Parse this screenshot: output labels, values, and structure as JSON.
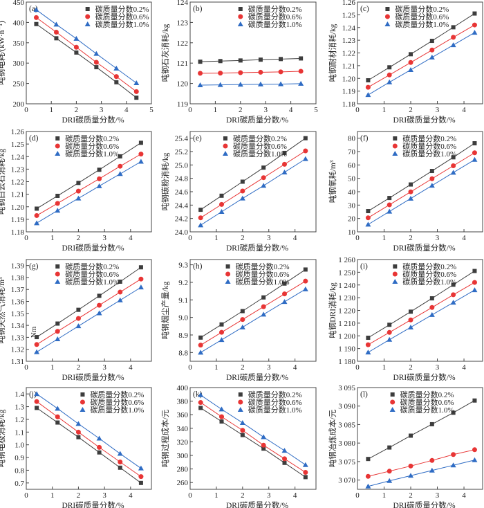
{
  "colors": {
    "c02": "#3d3d3d",
    "c06": "#e83535",
    "c10": "#2f6cc4"
  },
  "series_names": [
    "碳质量分数0.2%",
    "碳质量分数0.6%",
    "碳质量分数1.0%"
  ],
  "markers": [
    "square",
    "circle",
    "triangle"
  ],
  "chart_data": [
    {
      "type": "line",
      "panel": "(a)",
      "xlabel": "DRI碳质量分数/%",
      "ylabel": "吨钢电耗/(kW·h⁻¹)",
      "xlim": [
        0,
        5
      ],
      "xticks": [
        0,
        1,
        2,
        3,
        4,
        5
      ],
      "ylim": [
        200,
        450
      ],
      "yticks": [
        "200",
        "250",
        "300",
        "350",
        "400",
        "450"
      ],
      "legend": "top-right",
      "x": [
        0.4,
        1.2,
        2.0,
        2.8,
        3.6,
        4.4
      ],
      "series": [
        {
          "name": "碳质量分数0.2%",
          "values": [
            396,
            361,
            326,
            290,
            253,
            215
          ]
        },
        {
          "name": "碳质量分数0.6%",
          "values": [
            412,
            376,
            339,
            302,
            267,
            230
          ]
        },
        {
          "name": "碳质量分数1.0%",
          "values": [
            431,
            395,
            360,
            323,
            287,
            251
          ]
        }
      ]
    },
    {
      "type": "line",
      "panel": "(b)",
      "xlabel": "DRI碳质量分数/%",
      "ylabel": "吨钢石灰消耗/kg",
      "xlim": [
        0,
        5
      ],
      "xticks": [
        0,
        1,
        2,
        3,
        4,
        5
      ],
      "ylim": [
        119,
        124
      ],
      "yticks": [
        "119",
        "120",
        "121",
        "122",
        "123",
        "124"
      ],
      "legend": "top-right",
      "x": [
        0.4,
        1.2,
        2.0,
        2.8,
        3.6,
        4.4
      ],
      "series": [
        {
          "name": "碳质量分数0.2%",
          "values": [
            121.07,
            121.1,
            121.13,
            121.17,
            121.2,
            121.23
          ]
        },
        {
          "name": "碳质量分数0.6%",
          "values": [
            120.5,
            120.51,
            120.53,
            120.55,
            120.57,
            120.6
          ]
        },
        {
          "name": "碳质量分数1.0%",
          "values": [
            119.92,
            119.93,
            119.95,
            119.96,
            119.97,
            119.99
          ]
        }
      ]
    },
    {
      "type": "line",
      "panel": "(c)",
      "xlabel": "DRI碳质量分数/%",
      "ylabel": "吨钢耐材消耗/kg",
      "xlim": [
        0,
        4.7
      ],
      "xticks": [
        0,
        1,
        2,
        3,
        4
      ],
      "ylim": [
        1.18,
        1.26
      ],
      "yticks": [
        "1.18",
        "1.19",
        "1.20",
        "1.21",
        "1.22",
        "1.23",
        "1.24",
        "1.25",
        "1.26"
      ],
      "legend": "top-right",
      "x": [
        0.4,
        1.2,
        2.0,
        2.8,
        3.6,
        4.4
      ],
      "series": [
        {
          "name": "碳质量分数0.2%",
          "values": [
            1.1985,
            1.2087,
            1.219,
            1.2295,
            1.2402,
            1.251
          ]
        },
        {
          "name": "碳质量分数0.6%",
          "values": [
            1.193,
            1.2027,
            1.2125,
            1.2223,
            1.2323,
            1.242
          ]
        },
        {
          "name": "碳质量分数1.0%",
          "values": [
            1.187,
            1.197,
            1.2067,
            1.2165,
            1.2262,
            1.236
          ]
        }
      ]
    },
    {
      "type": "line",
      "panel": "(d)",
      "xlabel": "DRI碳质量分数/%",
      "ylabel": "吨钢白云石消耗/kg",
      "xlim": [
        0,
        4.8
      ],
      "xticks": [
        0,
        1,
        2,
        3,
        4
      ],
      "ylim": [
        1.18,
        1.26
      ],
      "yticks": [
        "1.18",
        "1.19",
        "1.20",
        "1.21",
        "1.22",
        "1.23",
        "1.24",
        "1.25",
        "1.26"
      ],
      "legend": "top-right",
      "x": [
        0.4,
        1.2,
        2.0,
        2.8,
        3.6,
        4.4
      ],
      "series": [
        {
          "name": "碳质量分数0.2%",
          "values": [
            1.1985,
            1.2087,
            1.219,
            1.2295,
            1.2402,
            1.251
          ]
        },
        {
          "name": "碳质量分数0.6%",
          "values": [
            1.193,
            1.2027,
            1.2125,
            1.2223,
            1.2323,
            1.242
          ]
        },
        {
          "name": "碳质量分数1.0%",
          "values": [
            1.187,
            1.197,
            1.2067,
            1.2165,
            1.2262,
            1.236
          ]
        }
      ]
    },
    {
      "type": "line",
      "panel": "(e)",
      "xlabel": "DRI碳质量分数/%",
      "ylabel": "吨钢碳粉消耗/kg",
      "xlim": [
        0,
        4.8
      ],
      "xticks": [
        0,
        1,
        2,
        3,
        4
      ],
      "ylim": [
        24.0,
        25.5
      ],
      "yticks": [
        "24.0",
        "24.2",
        "24.4",
        "24.6",
        "24.8",
        "25.0",
        "25.2",
        "25.4"
      ],
      "legend": "top-right",
      "x": [
        0.4,
        1.2,
        2.0,
        2.8,
        3.6,
        4.4
      ],
      "series": [
        {
          "name": "碳质量分数0.2%",
          "values": [
            24.33,
            24.54,
            24.75,
            24.96,
            25.18,
            25.4
          ]
        },
        {
          "name": "碳质量分数0.6%",
          "values": [
            24.21,
            24.41,
            24.61,
            24.81,
            25.01,
            25.21
          ]
        },
        {
          "name": "碳质量分数1.0%",
          "values": [
            24.1,
            24.3,
            24.5,
            24.69,
            24.89,
            25.09
          ]
        }
      ]
    },
    {
      "type": "line",
      "panel": "(f)",
      "xlabel": "DRI碳质量分数/%",
      "ylabel": "吨钢氧耗/m³",
      "xlim": [
        0,
        4.7
      ],
      "xticks": [
        0,
        1,
        2,
        3,
        4
      ],
      "ylim": [
        10,
        85
      ],
      "yticks": [
        "10",
        "20",
        "30",
        "40",
        "50",
        "60",
        "70",
        "80"
      ],
      "legend": "top-right",
      "x": [
        0.4,
        1.2,
        2.0,
        2.8,
        3.6,
        4.4
      ],
      "series": [
        {
          "name": "碳质量分数0.2%",
          "values": [
            25.5,
            35.3,
            45.4,
            55.5,
            65.7,
            76.2
          ]
        },
        {
          "name": "碳质量分数0.6%",
          "values": [
            20.5,
            30.2,
            39.9,
            49.7,
            59.4,
            69.1
          ]
        },
        {
          "name": "碳质量分数1.0%",
          "values": [
            15.5,
            25.2,
            34.9,
            44.6,
            54.3,
            63.9
          ]
        }
      ]
    },
    {
      "type": "line",
      "panel": "(g)",
      "xlabel": "DRI碳质量分数/%",
      "ylabel": "吨钢天然气消耗/m³",
      "annotation": "Nm",
      "xlim": [
        0,
        4.8
      ],
      "xticks": [
        0,
        1,
        2,
        3,
        4
      ],
      "ylim": [
        1.31,
        1.395
      ],
      "yticks": [
        "1.31",
        "1.32",
        "1.33",
        "1.34",
        "1.35",
        "1.36",
        "1.37",
        "1.38",
        "1.39"
      ],
      "legend": "top-right",
      "x": [
        0.4,
        1.2,
        2.0,
        2.8,
        3.6,
        4.4
      ],
      "series": [
        {
          "name": "碳质量分数0.2%",
          "values": [
            1.3302,
            1.3415,
            1.353,
            1.3647,
            1.3765,
            1.3885
          ]
        },
        {
          "name": "碳质量分数0.6%",
          "values": [
            1.324,
            1.335,
            1.3458,
            1.3568,
            1.3678,
            1.3787
          ]
        },
        {
          "name": "碳质量分数1.0%",
          "values": [
            1.3177,
            1.3285,
            1.3394,
            1.3502,
            1.361,
            1.3718
          ]
        }
      ]
    },
    {
      "type": "line",
      "panel": "(h)",
      "xlabel": "DRI碳质量分数/%",
      "ylabel": "吨钢烟尘产量/kg",
      "xlim": [
        0,
        4.8
      ],
      "xticks": [
        0,
        1,
        2,
        3,
        4
      ],
      "ylim": [
        8.75,
        9.33
      ],
      "yticks": [
        "8.8",
        "8.9",
        "9.0",
        "9.1",
        "9.2",
        "9.3"
      ],
      "legend": "top-right",
      "x": [
        0.4,
        1.2,
        2.0,
        2.8,
        3.6,
        4.4
      ],
      "series": [
        {
          "name": "碳质量分数0.2%",
          "values": [
            8.885,
            8.96,
            9.036,
            9.114,
            9.193,
            9.273
          ]
        },
        {
          "name": "碳质量分数0.6%",
          "values": [
            8.842,
            8.915,
            8.988,
            9.061,
            9.134,
            9.207
          ]
        },
        {
          "name": "碳质量分数1.0%",
          "values": [
            8.8,
            8.872,
            8.944,
            9.017,
            9.089,
            9.161
          ]
        }
      ]
    },
    {
      "type": "line",
      "panel": "(i)",
      "xlabel": "DRI碳质量分数/%",
      "ylabel": "吨钢DRI消耗/kg",
      "xlim": [
        0,
        4.7
      ],
      "xticks": [
        0,
        1,
        2,
        3,
        4
      ],
      "ylim": [
        1180,
        1260
      ],
      "yticks": [
        "1 180",
        "1 190",
        "1 200",
        "1 210",
        "1 220",
        "1 230",
        "1 240",
        "1 250",
        "1 260"
      ],
      "legend": "top-right",
      "x": [
        0.4,
        1.2,
        2.0,
        2.8,
        3.6,
        4.4
      ],
      "series": [
        {
          "name": "碳质量分数0.2%",
          "values": [
            1198.5,
            1208.7,
            1219,
            1229.5,
            1240.2,
            1251
          ]
        },
        {
          "name": "碳质量分数0.6%",
          "values": [
            1193,
            1202.7,
            1212.5,
            1222.3,
            1232.3,
            1242
          ]
        },
        {
          "name": "碳质量分数1.0%",
          "values": [
            1187,
            1197,
            1206.7,
            1216.5,
            1226.2,
            1236
          ]
        }
      ]
    },
    {
      "type": "line",
      "panel": "(j)",
      "xlabel": "DRI碳质量分数/%",
      "ylabel": "吨钢电极消耗/kg",
      "xlim": [
        0,
        4.8
      ],
      "xticks": [
        0,
        1,
        2,
        3,
        4
      ],
      "ylim": [
        0.65,
        1.45
      ],
      "yticks": [
        "0.7",
        "0.8",
        "0.9",
        "1.0",
        "1.1",
        "1.2",
        "1.3",
        "1.4"
      ],
      "legend": "top-right",
      "x": [
        0.4,
        1.2,
        2.0,
        2.8,
        3.6,
        4.4
      ],
      "series": [
        {
          "name": "碳质量分数0.2%",
          "values": [
            1.29,
            1.175,
            1.06,
            0.94,
            0.82,
            0.7
          ]
        },
        {
          "name": "碳质量分数0.6%",
          "values": [
            1.34,
            1.22,
            1.1,
            0.98,
            0.865,
            0.75
          ]
        },
        {
          "name": "碳质量分数1.0%",
          "values": [
            1.4,
            1.285,
            1.165,
            1.05,
            0.93,
            0.815
          ]
        }
      ]
    },
    {
      "type": "line",
      "panel": "(k)",
      "xlabel": "DRI碳质量分数/%",
      "ylabel": "吨钢过程成本/元",
      "xlim": [
        0,
        4.8
      ],
      "xticks": [
        0,
        1,
        2,
        3,
        4
      ],
      "ylim": [
        250,
        400
      ],
      "yticks": [
        "260",
        "280",
        "300",
        "320",
        "340",
        "360",
        "380",
        "400"
      ],
      "legend": "top-right",
      "x": [
        0.4,
        1.2,
        2.0,
        2.8,
        3.6,
        4.4
      ],
      "series": [
        {
          "name": "碳质量分数0.2%",
          "values": [
            370,
            350,
            330,
            310,
            289,
            268
          ]
        },
        {
          "name": "碳质量分数0.6%",
          "values": [
            378,
            357,
            337,
            315,
            295,
            275
          ]
        },
        {
          "name": "碳质量分数1.0%",
          "values": [
            389,
            368,
            348,
            327,
            307,
            286
          ]
        }
      ]
    },
    {
      "type": "line",
      "panel": "(l)",
      "xlabel": "DRI碳质量分数/%",
      "ylabel": "吨钢冶炼成本/元",
      "xlim": [
        0,
        4.7
      ],
      "xticks": [
        0,
        1,
        2,
        3,
        4
      ],
      "ylim": [
        3067.5,
        3095
      ],
      "yticks": [
        "3 070",
        "3 075",
        "3 080",
        "3 085",
        "3 090",
        "3 095"
      ],
      "legend": "top-right",
      "x": [
        0.4,
        1.2,
        2.0,
        2.8,
        3.6,
        4.4
      ],
      "series": [
        {
          "name": "碳质量分数0.2%",
          "values": [
            3075.7,
            3078.8,
            3082,
            3085.1,
            3088.2,
            3091.5
          ]
        },
        {
          "name": "碳质量分数0.6%",
          "values": [
            3071,
            3072.4,
            3073.8,
            3075.3,
            3076.9,
            3078.2
          ]
        },
        {
          "name": "碳质量分数1.0%",
          "values": [
            3068.3,
            3069.8,
            3071.2,
            3072.6,
            3074,
            3075.4
          ]
        }
      ]
    }
  ]
}
